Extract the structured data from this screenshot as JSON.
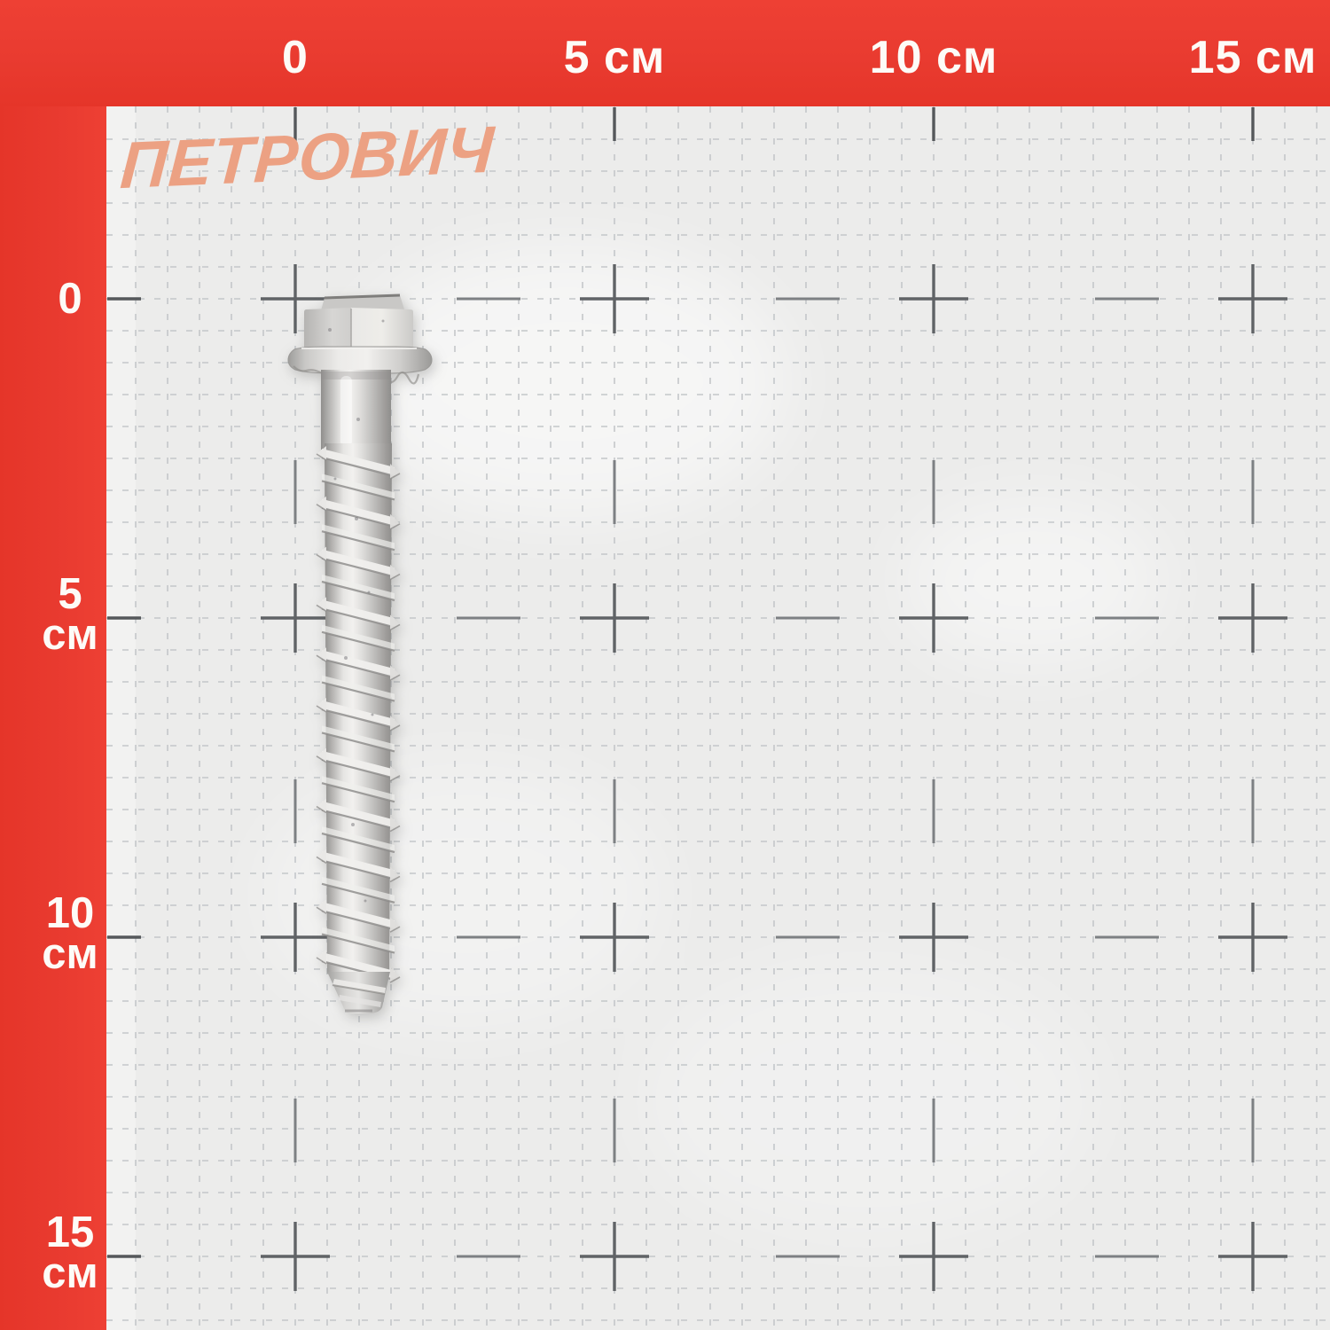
{
  "brand": {
    "display": "Петрович"
  },
  "rulers": {
    "unit": "см",
    "top": {
      "items": [
        {
          "text": "0"
        },
        {
          "text": "5 см"
        },
        {
          "text": "10 см"
        },
        {
          "text": "15 см"
        }
      ]
    },
    "left": {
      "items": [
        {
          "num": "0",
          "unit": ""
        },
        {
          "num": "5",
          "unit": "см"
        },
        {
          "num": "10",
          "unit": "см"
        },
        {
          "num": "15",
          "unit": "см"
        }
      ]
    }
  },
  "subject": {
    "name": "concrete-anchor-screw",
    "head": "hex-flange",
    "finish": "galvanized-silver"
  },
  "colors": {
    "band_red": "#e93b30",
    "label_text": "#fdfbf7",
    "logo": "#eca183",
    "paper": "#ececeb",
    "grid_minor": "#c4c7ca",
    "grid_major": "#606366",
    "grid_tick": "#55585b",
    "grid_mid": "#7d8083",
    "metal_light": "#f2f1ef",
    "metal_dark": "#8f8e8c"
  }
}
